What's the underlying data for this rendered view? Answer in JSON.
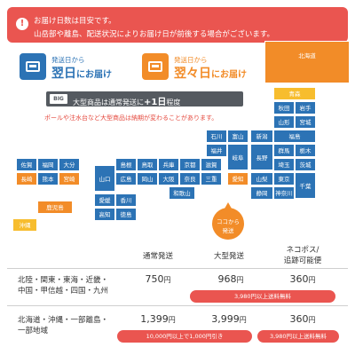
{
  "notice": {
    "line1": "お届け日数は目安です。",
    "line2": "山岳部や離島、配送状況によりお届け日が前後する場合がございます。"
  },
  "legend": [
    {
      "sub": "発送日から",
      "main": "翌日",
      "suffix": "にお届け",
      "color": "#2c73b5"
    },
    {
      "sub": "発送日から",
      "main": "翌々日",
      "suffix": "にお届け",
      "color": "#f28c28"
    }
  ],
  "big_notice": {
    "badge": "BIG",
    "text_prefix": "大型商品は通常発送に",
    "text_emph": "+1日",
    "text_suffix": "程度"
  },
  "pole_notice": "ポールや注水台など大型商品は納期が変わることがあります。",
  "map": {
    "hokkaido": "北海道",
    "aomori": "青森",
    "akita": "秋田",
    "iwate": "岩手",
    "yamagata": "山形",
    "miyagi": "宮城",
    "ishikawa": "石川",
    "toyama": "富山",
    "niigata": "新潟",
    "fukushima": "福島",
    "fukui": "福井",
    "gifu": "岐阜",
    "nagano": "長野",
    "gunma": "群馬",
    "tochigi": "栃木",
    "saitama": "埼玉",
    "ibaraki": "茨城",
    "yamanashi": "山梨",
    "tokyo": "東京",
    "chiba": "千葉",
    "aichi": "愛知",
    "shizuoka": "静岡",
    "kanagawa": "神奈川",
    "shimane": "島根",
    "tottori": "鳥取",
    "hyogo": "兵庫",
    "kyoto": "京都",
    "shiga": "滋賀",
    "yamaguchi": "山口",
    "hiroshima": "広島",
    "okayama": "岡山",
    "osaka": "大阪",
    "nara": "奈良",
    "mie": "三重",
    "wakayama": "和歌山",
    "ehime": "愛媛",
    "kagawa": "香川",
    "kochi": "高知",
    "tokushima": "徳島",
    "saga": "佐賀",
    "fukuoka": "福岡",
    "oita": "大分",
    "nagasaki": "長崎",
    "kumamoto": "熊本",
    "miyazaki": "宮崎",
    "kagoshima": "鹿児島",
    "okinawa": "沖縄",
    "origin_line1": "ココから",
    "origin_line2": "発送"
  },
  "table": {
    "headers": [
      "通常発送",
      "大型発送",
      "ネコポス/",
      "追跡可能便"
    ],
    "rows": [
      {
        "region_line1": "北陸・関東・東海・近畿・",
        "region_line2": "中国・甲信越・四国・九州",
        "normal": "750",
        "large": "968",
        "nekopos": "360",
        "pill": "3,980円以上送料無料"
      },
      {
        "region_line1": "北海道・沖縄・一部離島・",
        "region_line2": "一部地域",
        "normal": "1,399",
        "large": "3,999",
        "nekopos": "360",
        "pill_wide": "10,000円以上で1,000円引き",
        "pill": "3,980円以上送料無料"
      }
    ],
    "yen": "円"
  }
}
